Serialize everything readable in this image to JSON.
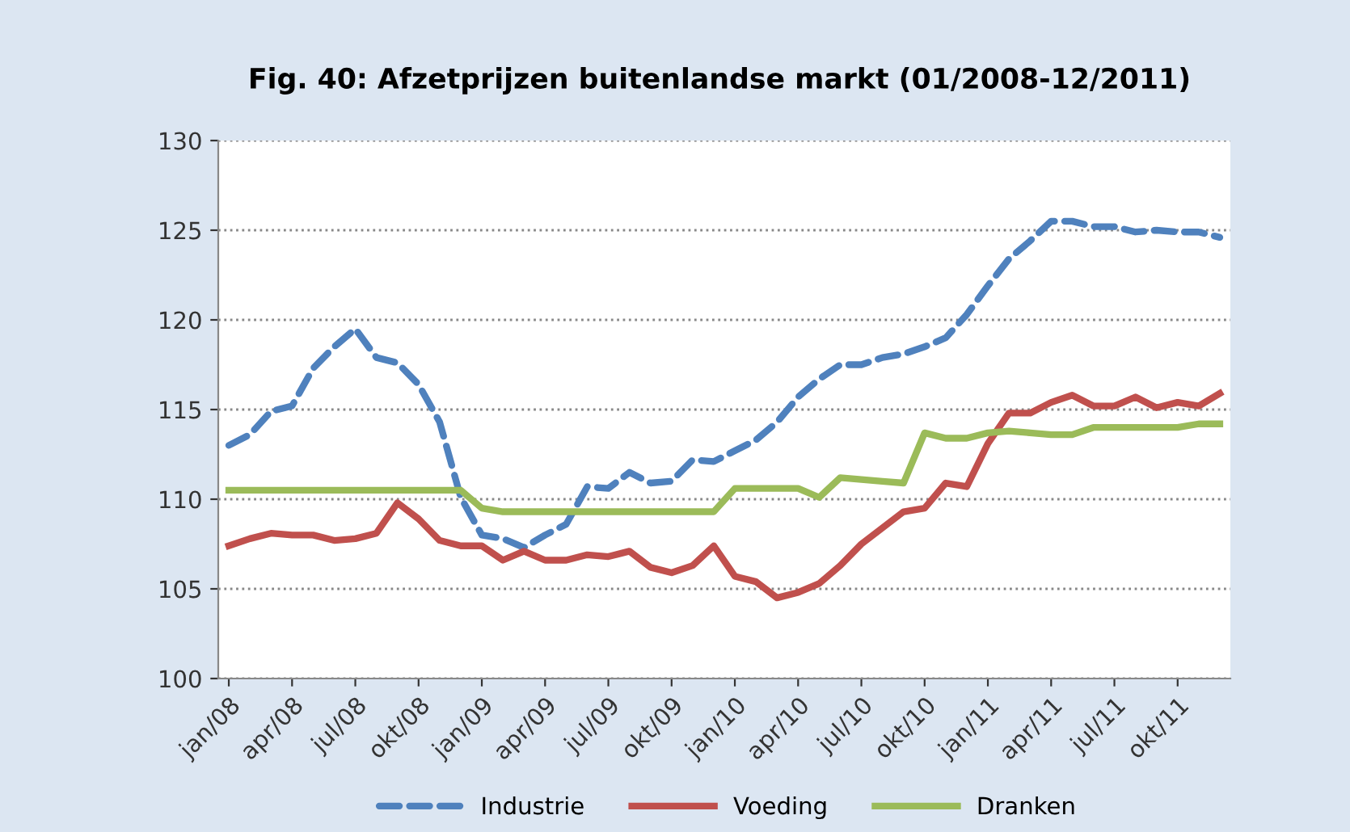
{
  "chart_data": {
    "type": "line",
    "title": "Fig. 40: Afzetprijzen buitenlandse markt (01/2008-12/2011)",
    "categories": [
      "jan/08",
      null,
      null,
      "apr/08",
      null,
      null,
      "jul/08",
      null,
      null,
      "okt/08",
      null,
      null,
      "jan/09",
      null,
      null,
      "apr/09",
      null,
      null,
      "jul/09",
      null,
      null,
      "okt/09",
      null,
      null,
      "jan/10",
      null,
      null,
      "apr/10",
      null,
      null,
      "jul/10",
      null,
      null,
      "okt/10",
      null,
      null,
      "jan/11",
      null,
      null,
      "apr/11",
      null,
      null,
      "jul/11",
      null,
      null,
      "okt/11",
      null,
      null
    ],
    "series": [
      {
        "name": "Industrie",
        "color": "#4f81bd",
        "line_style": "dashed",
        "values": [
          113.0,
          113.6,
          114.9,
          115.2,
          117.3,
          118.5,
          119.5,
          117.9,
          117.6,
          116.4,
          114.3,
          110.1,
          108.0,
          107.8,
          107.3,
          108.0,
          108.6,
          110.7,
          110.6,
          111.5,
          110.9,
          111.0,
          112.2,
          112.1,
          112.7,
          113.3,
          114.3,
          115.7,
          116.7,
          117.5,
          117.5,
          117.9,
          118.1,
          118.5,
          119.0,
          120.3,
          121.9,
          123.4,
          124.4,
          125.5,
          125.5,
          125.2,
          125.2,
          124.9,
          125.0,
          124.9,
          124.9,
          124.6
        ]
      },
      {
        "name": "Voeding",
        "color": "#c0504d",
        "line_style": "solid",
        "values": [
          107.4,
          107.8,
          108.1,
          108.0,
          108.0,
          107.7,
          107.8,
          108.1,
          109.8,
          108.9,
          107.7,
          107.4,
          107.4,
          106.6,
          107.1,
          106.6,
          106.6,
          106.9,
          106.8,
          107.1,
          106.2,
          105.9,
          106.3,
          107.4,
          105.7,
          105.4,
          104.5,
          104.8,
          105.3,
          106.3,
          107.5,
          108.4,
          109.3,
          109.5,
          110.9,
          110.7,
          113.1,
          114.8,
          114.8,
          115.4,
          115.8,
          115.2,
          115.2,
          115.7,
          115.1,
          115.4,
          115.2,
          115.9
        ]
      },
      {
        "name": "Dranken",
        "color": "#9bbb59",
        "line_style": "solid",
        "values": [
          110.5,
          110.5,
          110.5,
          110.5,
          110.5,
          110.5,
          110.5,
          110.5,
          110.5,
          110.5,
          110.5,
          110.5,
          109.5,
          109.3,
          109.3,
          109.3,
          109.3,
          109.3,
          109.3,
          109.3,
          109.3,
          109.3,
          109.3,
          109.3,
          110.6,
          110.6,
          110.6,
          110.6,
          110.1,
          111.2,
          111.1,
          111.0,
          110.9,
          113.7,
          113.4,
          113.4,
          113.7,
          113.8,
          113.7,
          113.6,
          113.6,
          114.0,
          114.0,
          114.0,
          114.0,
          114.0,
          114.2,
          114.2
        ]
      }
    ],
    "ylim": [
      100,
      130
    ],
    "yticks": [
      100,
      105,
      110,
      115,
      120,
      125,
      130
    ],
    "grid": "y",
    "legend": "bottom",
    "marker": "none"
  }
}
